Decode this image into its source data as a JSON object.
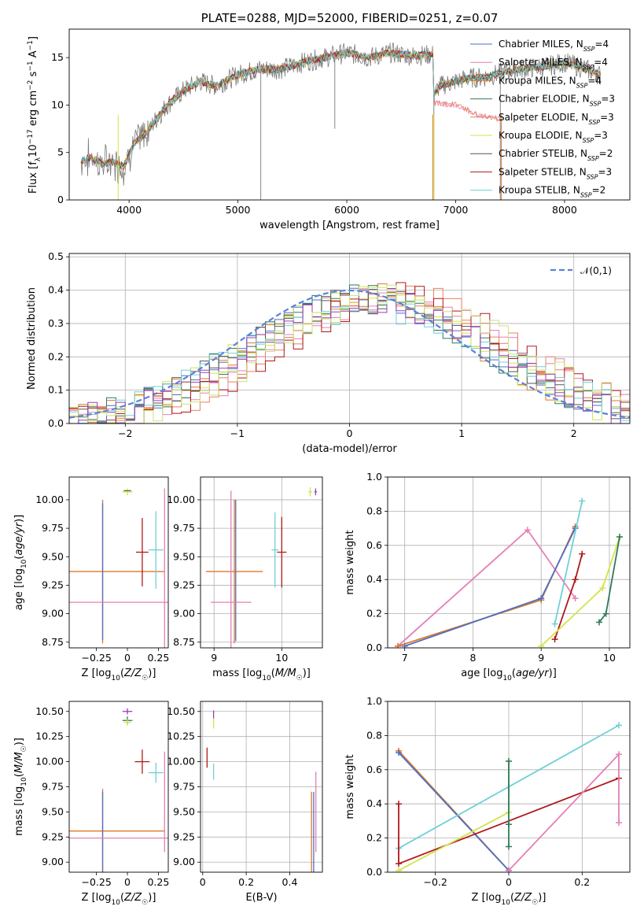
{
  "chart_data": [
    {
      "type": "line",
      "title": "PLATE=0288, MJD=52000, FIBERID=0251, z=0.07",
      "xlabel": "wavelength [Angstrom, rest frame]",
      "ylabel": "Flux [f_λ10^{-17} erg cm^{-2} s^{-1} A^{-1}]",
      "xlim": [
        3450,
        8600
      ],
      "ylim": [
        0,
        18
      ],
      "xticks": [
        4000,
        5000,
        6000,
        7000,
        8000
      ],
      "yticks": [
        0,
        5,
        10,
        15
      ],
      "legend_position": "top-right",
      "series": [
        {
          "name": "Chabrier MILES, N_SSP=4",
          "color": "#4f6fc4"
        },
        {
          "name": "Salpeter MILES, N_SSP=4",
          "color": "#e67fb6"
        },
        {
          "name": "Kroupa MILES, N_SSP=4",
          "color": "#e07828"
        },
        {
          "name": "Chabrier ELODIE, N_SSP=3",
          "color": "#2f7a5a"
        },
        {
          "name": "Salpeter ELODIE, N_SSP=3",
          "color": "#e88060"
        },
        {
          "name": "Kroupa ELODIE, N_SSP=3",
          "color": "#d4e34a"
        },
        {
          "name": "Chabrier STELIB, N_SSP=2",
          "color": "#555555"
        },
        {
          "name": "Salpeter STELIB, N_SSP=3",
          "color": "#b01818"
        },
        {
          "name": "Kroupa STELIB, N_SSP=2",
          "color": "#6fd0d8"
        }
      ],
      "data_curve": {
        "x": [
          3550,
          3650,
          3750,
          3850,
          3950,
          4050,
          4150,
          4250,
          4350,
          4500,
          4650,
          4800,
          5000,
          5200,
          5400,
          5600,
          5800,
          6000,
          6200,
          6400,
          6600,
          6790,
          6800,
          6850,
          7000,
          7100,
          7300,
          7450,
          7600,
          7800,
          8000,
          8200,
          8350
        ],
        "y": [
          4.0,
          4.5,
          3.8,
          4.0,
          3.5,
          6.0,
          7.0,
          8.5,
          10.0,
          11.5,
          12.5,
          12.0,
          13.2,
          13.8,
          13.8,
          14.5,
          15.0,
          15.5,
          15.0,
          15.5,
          15.2,
          15.3,
          11.0,
          12.0,
          12.5,
          12.8,
          13.0,
          13.5,
          13.8,
          14.0,
          14.5,
          13.8,
          13.0
        ]
      },
      "model_low_branch": {
        "x": [
          6800,
          7000,
          7200,
          7400
        ],
        "y": [
          10.2,
          10.0,
          9.0,
          8.5
        ]
      }
    },
    {
      "type": "line",
      "title": "",
      "xlabel": "(data-model)/error",
      "ylabel": "Normed distribution",
      "xlim": [
        -2.5,
        2.5
      ],
      "ylim": [
        0,
        0.51
      ],
      "xticks": [
        -2,
        -1,
        0,
        1,
        2
      ],
      "yticks": [
        0.0,
        0.1,
        0.2,
        0.3,
        0.4,
        0.5
      ],
      "legend_position": "top-right",
      "series": [
        {
          "name": "𝒩(0,1)",
          "style": "dashed",
          "color": "#5b82d8"
        }
      ],
      "histogram_colors": [
        "#4f6fc4",
        "#e67fb6",
        "#e07828",
        "#2f7a5a",
        "#e88060",
        "#d4e34a",
        "#555555",
        "#b01818",
        "#6fd0d8",
        "#9b3fb5",
        "#c8e37a"
      ]
    },
    {
      "type": "scatter",
      "xlabel": "Z [log10(Z/Z☉)]",
      "ylabel": "age [log10(age/yr)]",
      "xlim": [
        -0.47,
        0.33
      ],
      "ylim": [
        8.7,
        10.2
      ],
      "xticks": [
        -0.25,
        0.0,
        0.25
      ],
      "yticks": [
        8.75,
        9.0,
        9.25,
        9.5,
        9.75,
        10.0
      ],
      "points": [
        {
          "x": -0.2,
          "y": 9.37,
          "xerr": 0.5,
          "yerr": 0.63,
          "color": "#e07828"
        },
        {
          "x": -0.2,
          "y": 9.37,
          "xerr": 0.0,
          "yerr": 0.6,
          "color": "#4f6fc4"
        },
        {
          "x": -0.07,
          "y": 9.1,
          "xerr": 0.4,
          "yerr": 0.0,
          "color": "#e67fb6"
        },
        {
          "x": 0.3,
          "y": 9.4,
          "xerr": 0.0,
          "yerr": 0.7,
          "color": "#e67fb6"
        },
        {
          "x": 0.12,
          "y": 9.54,
          "xerr": 0.05,
          "yerr": 0.3,
          "color": "#b01818"
        },
        {
          "x": 0.23,
          "y": 9.56,
          "xerr": 0.06,
          "yerr": 0.34,
          "color": "#6fd0d8"
        },
        {
          "x": 0.0,
          "y": 10.07,
          "xerr": 0.04,
          "yerr": 0.03,
          "color": "#d4e34a"
        },
        {
          "x": 0.0,
          "y": 10.08,
          "xerr": 0.03,
          "yerr": 0.0,
          "color": "#2f7a5a"
        }
      ]
    },
    {
      "type": "scatter",
      "xlabel": "mass [log10(M/M☉)]",
      "ylabel": "",
      "xlim": [
        8.8,
        10.6
      ],
      "ylim": [
        8.7,
        10.2
      ],
      "xticks": [
        9,
        10
      ],
      "yticks": [
        8.75,
        9.0,
        9.25,
        9.5,
        9.75,
        10.0
      ],
      "points": [
        {
          "x": 9.3,
          "y": 9.37,
          "xerr": 0.42,
          "yerr": 0.63,
          "color": "#e07828"
        },
        {
          "x": 9.32,
          "y": 9.38,
          "xerr": 0.0,
          "yerr": 0.62,
          "color": "#4f6fc4"
        },
        {
          "x": 9.25,
          "y": 9.1,
          "xerr": 0.3,
          "yerr": 0.98,
          "color": "#e67fb6"
        },
        {
          "x": 10.0,
          "y": 9.54,
          "xerr": 0.07,
          "yerr": 0.31,
          "color": "#b01818"
        },
        {
          "x": 9.9,
          "y": 9.56,
          "xerr": 0.05,
          "yerr": 0.33,
          "color": "#6fd0d8"
        },
        {
          "x": 10.42,
          "y": 10.07,
          "xerr": 0.03,
          "yerr": 0.04,
          "color": "#d4e34a"
        },
        {
          "x": 10.5,
          "y": 10.07,
          "xerr": 0.02,
          "yerr": 0.03,
          "color": "#9b3fb5"
        }
      ]
    },
    {
      "type": "line",
      "xlabel": "age [log10(age/yr)]",
      "ylabel": "mass weight",
      "xlim": [
        6.75,
        10.3
      ],
      "ylim": [
        0,
        1.0
      ],
      "xticks": [
        7,
        8,
        9,
        10
      ],
      "yticks": [
        0.0,
        0.2,
        0.4,
        0.6,
        0.8,
        1.0
      ],
      "series": [
        {
          "color": "#e67fb6",
          "x": [
            6.9,
            8.8,
            9.5
          ],
          "y": [
            0.01,
            0.69,
            0.29
          ]
        },
        {
          "color": "#e07828",
          "x": [
            6.9,
            9.0,
            9.5
          ],
          "y": [
            0.01,
            0.28,
            0.71
          ]
        },
        {
          "color": "#4f6fc4",
          "x": [
            7.0,
            9.0,
            9.5
          ],
          "y": [
            0.01,
            0.29,
            0.7
          ]
        },
        {
          "color": "#6fd0d8",
          "x": [
            9.2,
            9.6
          ],
          "y": [
            0.14,
            0.86
          ]
        },
        {
          "color": "#b01818",
          "x": [
            9.2,
            9.5,
            9.6
          ],
          "y": [
            0.05,
            0.4,
            0.55
          ]
        },
        {
          "color": "#d4e34a",
          "x": [
            9.0,
            9.9,
            10.15
          ],
          "y": [
            0.01,
            0.35,
            0.65
          ]
        },
        {
          "color": "#2f7a5a",
          "x": [
            9.85,
            9.95,
            10.15
          ],
          "y": [
            0.15,
            0.2,
            0.65
          ]
        }
      ]
    },
    {
      "type": "scatter",
      "xlabel": "Z [log10(Z/Z☉)]",
      "ylabel": "mass [log10(M/M☉)]",
      "xlim": [
        -0.47,
        0.33
      ],
      "ylim": [
        8.9,
        10.6
      ],
      "xticks": [
        -0.25,
        0.0,
        0.25
      ],
      "yticks": [
        9.0,
        9.25,
        9.5,
        9.75,
        10.0,
        10.25,
        10.5
      ],
      "points": [
        {
          "x": -0.2,
          "y": 9.31,
          "xerr": 0.5,
          "yerr": 0.42,
          "color": "#e07828"
        },
        {
          "x": -0.2,
          "y": 9.3,
          "xerr": 0.0,
          "yerr": 0.4,
          "color": "#4f6fc4"
        },
        {
          "x": -0.05,
          "y": 9.24,
          "xerr": 0.45,
          "yerr": 0.0,
          "color": "#e67fb6"
        },
        {
          "x": 0.3,
          "y": 9.6,
          "xerr": 0.0,
          "yerr": 0.5,
          "color": "#e67fb6"
        },
        {
          "x": 0.12,
          "y": 10.0,
          "xerr": 0.06,
          "yerr": 0.12,
          "color": "#b01818"
        },
        {
          "x": 0.23,
          "y": 9.89,
          "xerr": 0.06,
          "yerr": 0.1,
          "color": "#6fd0d8"
        },
        {
          "x": 0.0,
          "y": 10.5,
          "xerr": 0.04,
          "yerr": 0.03,
          "color": "#9b3fb5"
        },
        {
          "x": 0.0,
          "y": 10.41,
          "xerr": 0.04,
          "yerr": 0.04,
          "color": "#2f7a5a"
        },
        {
          "x": 0.0,
          "y": 10.39,
          "xerr": 0.03,
          "yerr": 0.03,
          "color": "#d4e34a"
        }
      ]
    },
    {
      "type": "scatter",
      "xlabel": "E(B-V)",
      "ylabel": "",
      "xlim": [
        -0.01,
        0.55
      ],
      "ylim": [
        8.9,
        10.6
      ],
      "xticks": [
        0.0,
        0.2,
        0.4
      ],
      "yticks": [
        9.0,
        9.25,
        9.5,
        9.75,
        10.0,
        10.25,
        10.5
      ],
      "points": [
        {
          "x": 0.5,
          "y": 9.3,
          "xerr": 0.0,
          "yerr": 0.4,
          "color": "#e07828"
        },
        {
          "x": 0.51,
          "y": 9.3,
          "xerr": 0.0,
          "yerr": 0.4,
          "color": "#4f6fc4"
        },
        {
          "x": 0.52,
          "y": 9.5,
          "xerr": 0.0,
          "yerr": 0.4,
          "color": "#e67fb6"
        },
        {
          "x": 0.02,
          "y": 10.04,
          "xerr": 0.0,
          "yerr": 0.1,
          "color": "#b01818"
        },
        {
          "x": 0.05,
          "y": 9.9,
          "xerr": 0.0,
          "yerr": 0.08,
          "color": "#6fd0d8"
        },
        {
          "x": 0.05,
          "y": 10.47,
          "xerr": 0.0,
          "yerr": 0.04,
          "color": "#9b3fb5"
        },
        {
          "x": 0.05,
          "y": 10.38,
          "xerr": 0.0,
          "yerr": 0.05,
          "color": "#d4e34a"
        }
      ]
    },
    {
      "type": "line",
      "xlabel": "Z [log10(Z/Z☉)]",
      "ylabel": "mass weight",
      "xlim": [
        -0.33,
        0.33
      ],
      "ylim": [
        0,
        1.0
      ],
      "xticks": [
        -0.2,
        0.0,
        0.2
      ],
      "yticks": [
        0.0,
        0.2,
        0.4,
        0.6,
        0.8,
        1.0
      ],
      "series": [
        {
          "color": "#e07828",
          "x": [
            -0.3,
            0.0
          ],
          "y": [
            0.71,
            0.01
          ]
        },
        {
          "color": "#4f6fc4",
          "x": [
            -0.3,
            0.0
          ],
          "y": [
            0.7,
            0.01
          ]
        },
        {
          "color": "#6fd0d8",
          "x": [
            -0.3,
            0.3
          ],
          "y": [
            0.14,
            0.86
          ]
        },
        {
          "color": "#b01818",
          "x": [
            -0.3,
            -0.3,
            0.3
          ],
          "y": [
            0.4,
            0.05,
            0.55
          ]
        },
        {
          "color": "#e67fb6",
          "x": [
            0.0,
            0.3,
            0.3
          ],
          "y": [
            0.01,
            0.69,
            0.29
          ]
        },
        {
          "color": "#d4e34a",
          "x": [
            -0.3,
            0.0,
            0.0
          ],
          "y": [
            0.01,
            0.35,
            0.65
          ]
        },
        {
          "color": "#2f7a5a",
          "x": [
            0.0,
            0.0,
            0.0
          ],
          "y": [
            0.15,
            0.28,
            0.65
          ]
        }
      ]
    }
  ]
}
